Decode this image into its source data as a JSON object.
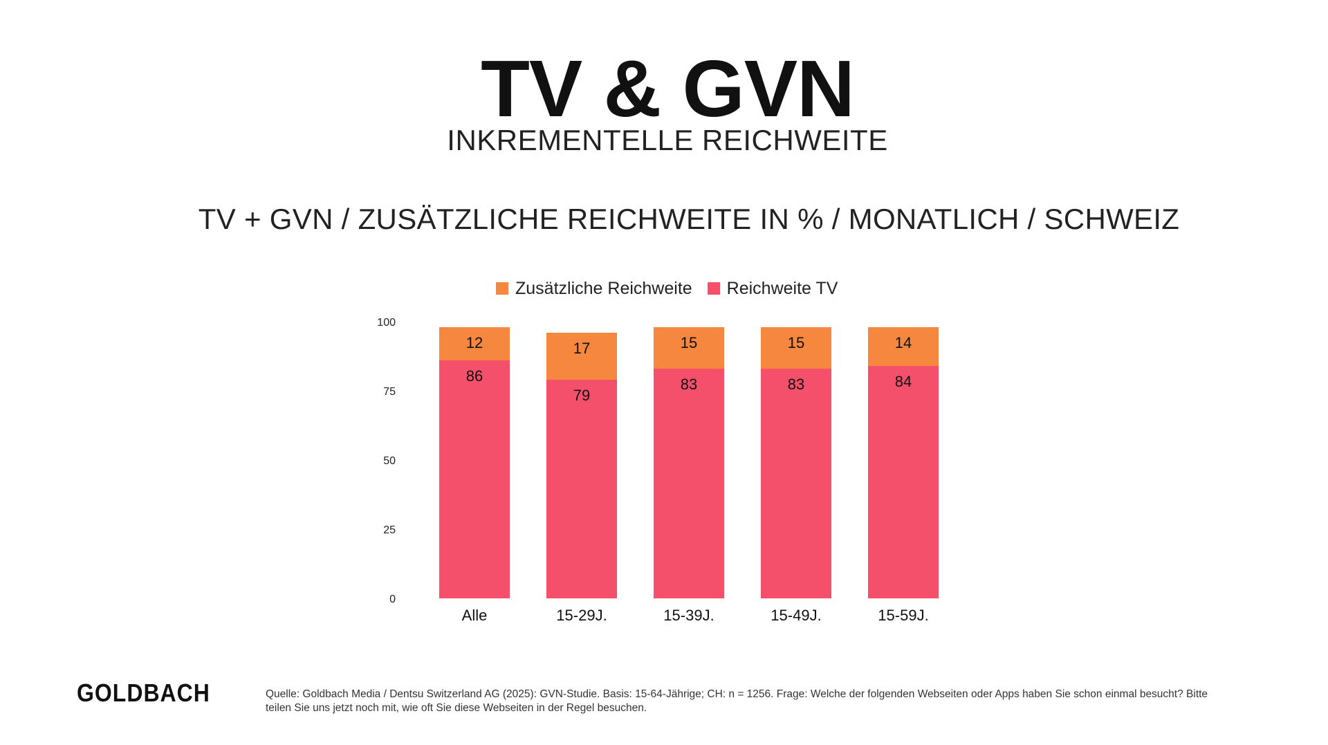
{
  "title": "TV & GVN",
  "subtitle": "INKREMENTELLE REICHWEITE",
  "chart_heading": "TV + GVN / ZUSÄTZLICHE REICHWEITE IN % / MONATLICH / SCHWEIZ",
  "logo": "GOLDBACH",
  "footnote": "Quelle: Goldbach Media / Dentsu Switzerland AG (2025): GVN-Studie. Basis: 15-64-Jährige; CH: n = 1256. Frage: Welche der folgenden Webseiten oder Apps haben Sie schon einmal besucht? Bitte teilen Sie uns jetzt noch mit, wie oft Sie diese Webseiten in der Regel besuchen.",
  "colors": {
    "reichweite_tv": "#f5506b",
    "zusaetzliche_reichweite": "#f5873f"
  },
  "chart_data": {
    "type": "bar",
    "stacked": true,
    "categories": [
      "Alle",
      "15-29J.",
      "15-39J.",
      "15-49J.",
      "15-59J."
    ],
    "series": [
      {
        "name": "Reichweite TV",
        "values": [
          86,
          79,
          83,
          83,
          84
        ]
      },
      {
        "name": "Zusätzliche Reichweite",
        "values": [
          12,
          17,
          15,
          15,
          14
        ]
      }
    ],
    "legend": [
      "Zusätzliche Reichweite",
      "Reichweite TV"
    ],
    "legend_position": "top",
    "y_ticks": [
      0,
      25,
      50,
      75,
      100
    ],
    "ylim": [
      0,
      100
    ],
    "grid": false,
    "data_labels": true
  }
}
